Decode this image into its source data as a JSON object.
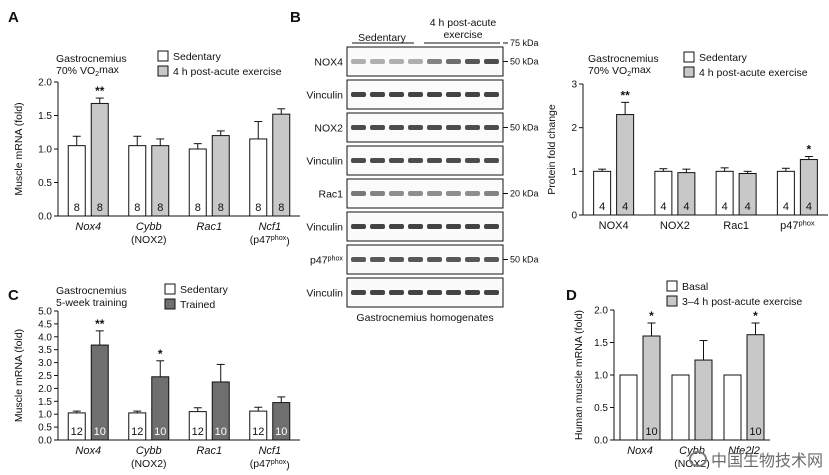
{
  "colors": {
    "sedentary": "#ffffff",
    "acute": "#c8c8c8",
    "trained": "#6f6f6f",
    "axis": "#111111"
  },
  "chart_data": [
    {
      "panel": "A",
      "type": "bar",
      "context_lines": [
        "Gastrocnemius",
        "70% VO₂max"
      ],
      "ylabel": "Muscle mRNA (fold)",
      "ylim": [
        0,
        2.0
      ],
      "yticks": [
        "0.0",
        "0.5",
        "1.0",
        "1.5",
        "2.0"
      ],
      "categories": [
        "Nox4",
        "Cybb",
        "Rac1",
        "Ncf1"
      ],
      "category_sublabels": [
        "",
        "(NOX2)",
        "",
        "(p47phox)"
      ],
      "legend_location": "top-right",
      "series": [
        {
          "name": "Sedentary",
          "color_key": "sedentary",
          "values": [
            1.05,
            1.05,
            1.0,
            1.15
          ],
          "errors": [
            0.14,
            0.14,
            0.08,
            0.26
          ],
          "n": [
            "8",
            "8",
            "8",
            "8"
          ]
        },
        {
          "name": "4 h post-acute exercise",
          "color_key": "acute",
          "values": [
            1.68,
            1.05,
            1.2,
            1.52
          ],
          "errors": [
            0.08,
            0.1,
            0.07,
            0.08
          ],
          "n": [
            "8",
            "8",
            "8",
            "8"
          ]
        }
      ],
      "significance": [
        {
          "category": 0,
          "series": 1,
          "label": "**"
        }
      ]
    },
    {
      "panel": "B",
      "type": "table",
      "group_labels": [
        "Sedentary",
        "4 h post-acute",
        "exercise"
      ],
      "rows": [
        {
          "label": "NOX4",
          "markers": [
            "75 kDa",
            "50 kDa"
          ]
        },
        {
          "label": "Vinculin",
          "markers": []
        },
        {
          "label": "NOX2",
          "markers": [
            "50 kDa"
          ]
        },
        {
          "label": "Vinculin",
          "markers": []
        },
        {
          "label": "Rac1",
          "markers": [
            "20 kDa"
          ]
        },
        {
          "label": "Vinculin",
          "markers": []
        },
        {
          "label": "p47phox",
          "markers": [
            "50 kDa"
          ]
        },
        {
          "label": "Vinculin",
          "markers": []
        }
      ],
      "footer": "Gastrocnemius homogenates"
    },
    {
      "panel": "",
      "type": "bar",
      "context_lines": [
        "Gastrocnemius",
        "70% VO₂max"
      ],
      "ylabel": "Protein fold change",
      "ylim": [
        0,
        3
      ],
      "yticks": [
        "0",
        "1",
        "2",
        "3"
      ],
      "categories": [
        "NOX4",
        "NOX2",
        "Rac1",
        "p47phox"
      ],
      "category_sublabels": [
        "",
        "",
        "",
        ""
      ],
      "legend_location": "top-right",
      "series": [
        {
          "name": "Sedentary",
          "color_key": "sedentary",
          "values": [
            1.0,
            1.0,
            1.0,
            1.0
          ],
          "errors": [
            0.05,
            0.06,
            0.08,
            0.07
          ],
          "n": [
            "4",
            "4",
            "4",
            "4"
          ]
        },
        {
          "name": "4 h post-acute exercise",
          "color_key": "acute",
          "values": [
            2.3,
            0.97,
            0.95,
            1.27
          ],
          "errors": [
            0.28,
            0.08,
            0.05,
            0.07
          ],
          "n": [
            "4",
            "4",
            "4",
            "4"
          ]
        }
      ],
      "significance": [
        {
          "category": 0,
          "series": 1,
          "label": "**"
        },
        {
          "category": 3,
          "series": 1,
          "label": "*"
        }
      ]
    },
    {
      "panel": "C",
      "type": "bar",
      "context_lines": [
        "Gastrocnemius",
        "5-week training"
      ],
      "ylabel": "Muscle mRNA (fold)",
      "ylim": [
        0,
        5.0
      ],
      "yticks": [
        "0.0",
        "0.5",
        "1.0",
        "1.5",
        "2.0",
        "2.5",
        "3.0",
        "3.5",
        "4.0",
        "4.5",
        "5.0"
      ],
      "categories": [
        "Nox4",
        "Cybb",
        "Rac1",
        "Ncf1"
      ],
      "category_sublabels": [
        "",
        "(NOX2)",
        "",
        "(p47phox)"
      ],
      "legend_location": "top-right",
      "series": [
        {
          "name": "Sedentary",
          "color_key": "sedentary",
          "values": [
            1.05,
            1.05,
            1.1,
            1.12
          ],
          "errors": [
            0.07,
            0.07,
            0.15,
            0.15
          ],
          "n": [
            "12",
            "12",
            "12",
            "12"
          ]
        },
        {
          "name": "Trained",
          "color_key": "trained",
          "values": [
            3.68,
            2.45,
            2.25,
            1.45
          ],
          "errors": [
            0.55,
            0.62,
            0.68,
            0.22
          ],
          "n": [
            "10",
            "10",
            "10",
            "10"
          ]
        }
      ],
      "significance": [
        {
          "category": 0,
          "series": 1,
          "label": "**"
        },
        {
          "category": 1,
          "series": 1,
          "label": "*"
        }
      ]
    },
    {
      "panel": "D",
      "type": "bar",
      "context_lines": [],
      "ylabel": "Human muscle mRNA (fold)",
      "ylim": [
        0,
        2.0
      ],
      "yticks": [
        "0.0",
        "0.5",
        "1.0",
        "1.5",
        "2.0"
      ],
      "categories": [
        "Nox4",
        "Cybb",
        "Nfe2l2"
      ],
      "category_sublabels": [
        "",
        "(NOX2)",
        ""
      ],
      "legend_location": "top-right",
      "series": [
        {
          "name": "Basal",
          "color_key": "sedentary",
          "values": [
            1.0,
            1.0,
            1.0
          ],
          "errors": [
            0,
            0,
            0
          ],
          "n": [
            "",
            "",
            ""
          ]
        },
        {
          "name": "3–4 h post-acute exercise",
          "color_key": "acute",
          "values": [
            1.6,
            1.23,
            1.62
          ],
          "errors": [
            0.2,
            0.3,
            0.18
          ],
          "n": [
            "10",
            "",
            "10"
          ]
        }
      ],
      "significance": [
        {
          "category": 0,
          "series": 1,
          "label": "*"
        },
        {
          "category": 2,
          "series": 1,
          "label": "*"
        }
      ]
    }
  ],
  "watermark": {
    "text": "中国生物技术网",
    "icon": "speech-bubble-icon"
  }
}
